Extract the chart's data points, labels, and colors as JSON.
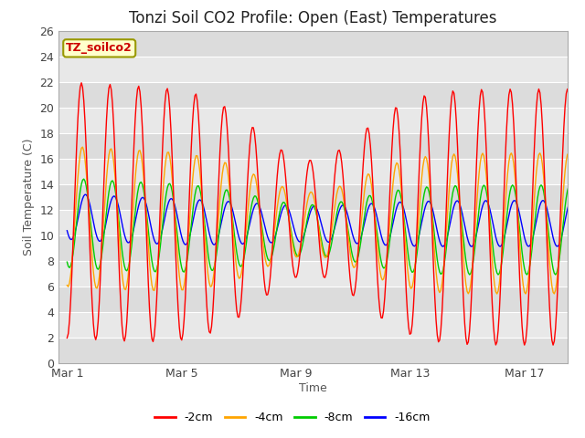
{
  "title": "Tonzi Soil CO2 Profile: Open (East) Temperatures",
  "xlabel": "Time",
  "ylabel": "Soil Temperature (C)",
  "ylim": [
    0,
    26
  ],
  "yticks": [
    0,
    2,
    4,
    6,
    8,
    10,
    12,
    14,
    16,
    18,
    20,
    22,
    24,
    26
  ],
  "xtick_labels": [
    "Mar 1",
    "Mar 5",
    "Mar 9",
    "Mar 13",
    "Mar 17"
  ],
  "xtick_positions": [
    0,
    4,
    8,
    12,
    16
  ],
  "legend_label": "TZ_soilco2",
  "legend_box_facecolor": "#ffffcc",
  "legend_box_edgecolor": "#999900",
  "legend_text_color": "#cc0000",
  "series_labels": [
    "-2cm",
    "-4cm",
    "-8cm",
    "-16cm"
  ],
  "series_colors": [
    "#ff0000",
    "#ffa500",
    "#00cc00",
    "#0000ff"
  ],
  "background_color": "#ffffff",
  "band_colors": [
    "#dcdcdc",
    "#e8e8e8"
  ],
  "grid_color": "#ffffff",
  "n_days": 18,
  "title_fontsize": 12,
  "axis_label_fontsize": 9,
  "tick_fontsize": 9,
  "legend_fontsize": 9
}
